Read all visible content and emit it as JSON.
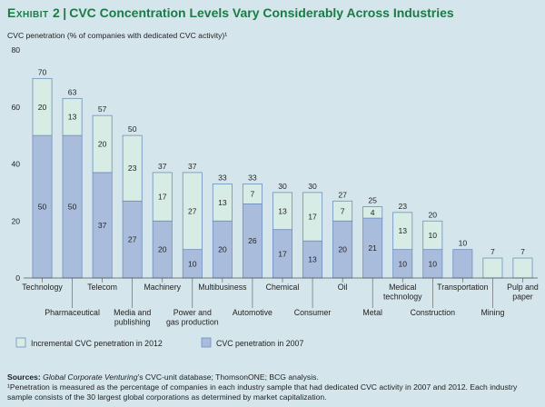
{
  "header": {
    "exhibit": "Exhibit 2",
    "separator": "|",
    "title": "CVC Concentration Levels Vary Considerably Across Industries"
  },
  "footer": {
    "sources_label": "Sources:",
    "sources_italic": "Global Corporate Venturing",
    "sources_text": "’s CVC-unit database; ThomsonONE; BCG analysis.",
    "footnote": "¹Penetration is measured as the percentage of companies in each industry sample that had dedicated CVC activity in 2007 and 2012. Each industry sample consists of the 30 largest global corporations as determined by market capitalization."
  },
  "chart_data": {
    "type": "bar",
    "stacked": true,
    "ylabel": "CVC penetration (% of companies with dedicated CVC activity)¹",
    "ylim": [
      0,
      80
    ],
    "yticks": [
      0,
      20,
      40,
      60,
      80
    ],
    "categories": [
      "Technology",
      "Pharmaceutical",
      "Telecom",
      "Media and publishing",
      "Machinery",
      "Power and gas production",
      "Multibusiness",
      "Automotive",
      "Chemical",
      "Consumer",
      "Oil",
      "Metal",
      "Medical technology",
      "Construction",
      "Transportation",
      "Mining",
      "Pulp and paper"
    ],
    "category_lines": [
      [
        "Technology"
      ],
      [
        "Pharmaceutical"
      ],
      [
        "Telecom"
      ],
      [
        "Media and",
        "publishing"
      ],
      [
        "Machinery"
      ],
      [
        "Power and",
        "gas production"
      ],
      [
        "Multibusiness"
      ],
      [
        "Automotive"
      ],
      [
        "Chemical"
      ],
      [
        "Consumer"
      ],
      [
        "Oil"
      ],
      [
        "Metal"
      ],
      [
        "Medical",
        "technology"
      ],
      [
        "Construction"
      ],
      [
        "Transportation"
      ],
      [
        "Mining"
      ],
      [
        "Pulp and",
        "paper"
      ]
    ],
    "series": [
      {
        "name": "CVC penetration in 2007",
        "color": "#a9bcdb",
        "values": [
          50,
          50,
          37,
          27,
          20,
          10,
          20,
          26,
          17,
          13,
          20,
          21,
          10,
          10,
          10,
          0,
          0
        ]
      },
      {
        "name": "Incremental CVC penetration in 2012",
        "color": "#d6ece4",
        "values": [
          20,
          13,
          20,
          23,
          17,
          27,
          13,
          7,
          13,
          17,
          7,
          4,
          13,
          10,
          0,
          7,
          7
        ]
      }
    ],
    "segment_labels_2007": [
      "50",
      "50",
      "37",
      "27",
      "20",
      "10",
      "20",
      "26",
      "17",
      "13",
      "20",
      "21",
      "10",
      "10",
      "",
      "",
      ""
    ],
    "segment_labels_2012": [
      "20",
      "13",
      "20",
      "23",
      "17",
      "27",
      "13",
      "7",
      "13",
      "17",
      "7",
      "4",
      "13",
      "10",
      "",
      "",
      ""
    ],
    "totals": [
      "70",
      "63",
      "57",
      "50",
      "37",
      "37",
      "33",
      "33",
      "30",
      "30",
      "27",
      "25",
      "23",
      "20",
      "10",
      "7",
      "7"
    ],
    "legend": [
      {
        "label": "Incremental CVC penetration in 2012",
        "color": "#d6ece4"
      },
      {
        "label": "CVC penetration in 2007",
        "color": "#a9bcdb"
      }
    ],
    "legend_position": "bottom-left",
    "grid": false
  }
}
